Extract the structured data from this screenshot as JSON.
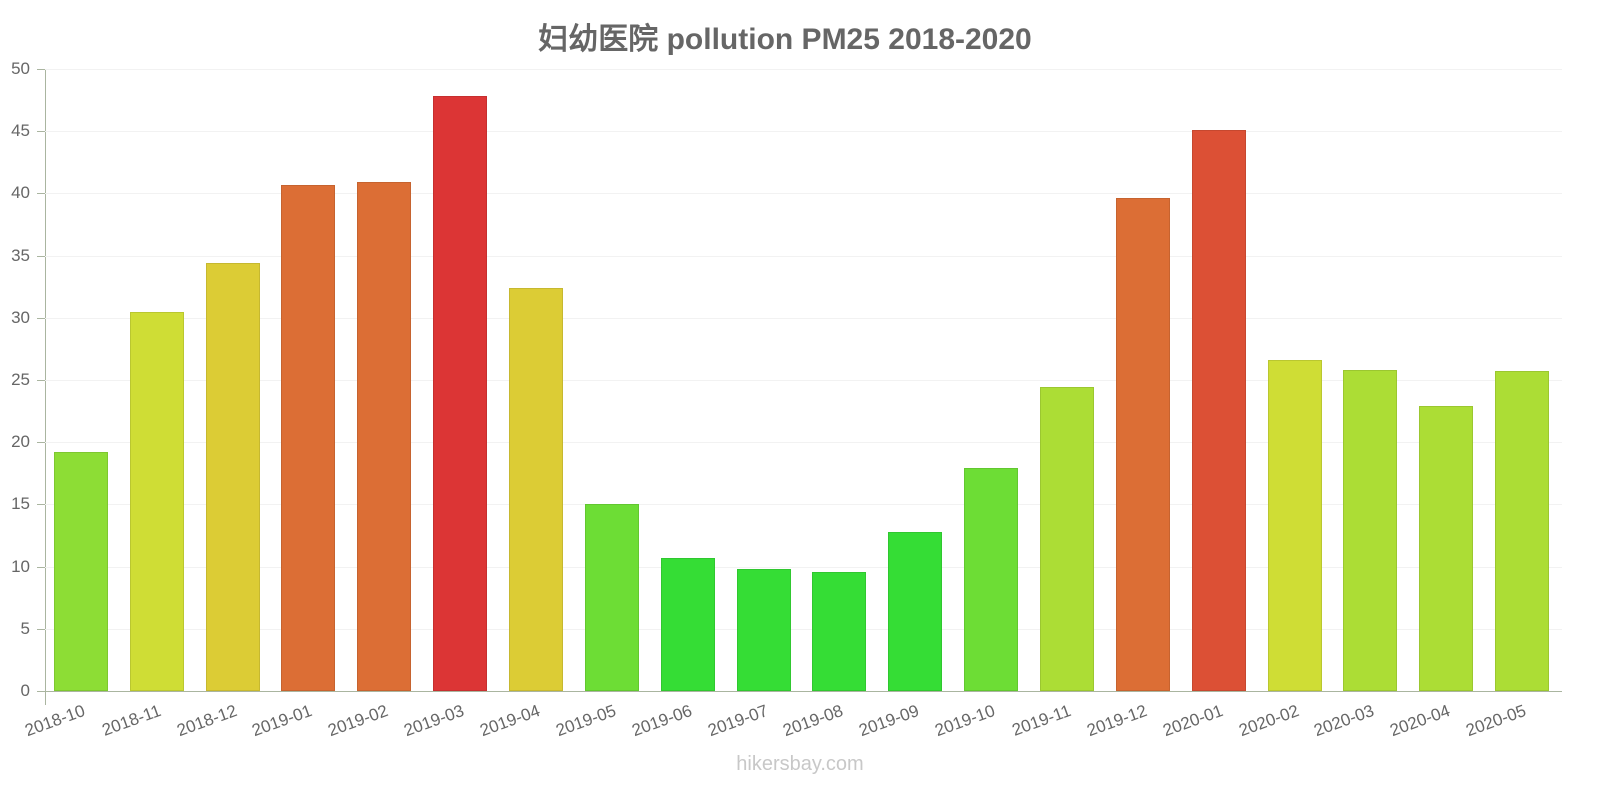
{
  "chart_data": {
    "type": "bar",
    "title": "妇幼医院 pollution PM25 2018-2020",
    "xlabel": "",
    "ylabel": "",
    "ylim": [
      0,
      50
    ],
    "yticks": [
      0,
      5,
      10,
      15,
      20,
      25,
      30,
      35,
      40,
      45,
      50
    ],
    "grid": true,
    "legend": null,
    "categories": [
      "2018-10",
      "2018-11",
      "2018-12",
      "2019-01",
      "2019-02",
      "2019-03",
      "2019-04",
      "2019-05",
      "2019-06",
      "2019-07",
      "2019-08",
      "2019-09",
      "2019-10",
      "2019-11",
      "2019-12",
      "2020-01",
      "2020-02",
      "2020-03",
      "2020-04",
      "2020-05"
    ],
    "values": [
      19.2,
      30.5,
      34.4,
      40.7,
      40.9,
      47.8,
      32.4,
      15.0,
      10.7,
      9.8,
      9.6,
      12.8,
      17.9,
      24.4,
      39.6,
      45.1,
      26.6,
      25.8,
      22.9,
      25.7
    ],
    "colors": [
      "#8ddd35",
      "#cfdd35",
      "#dccc35",
      "#dc6e35",
      "#dc6e35",
      "#dc3535",
      "#dccc35",
      "#6ddd35",
      "#35dd35",
      "#35dd35",
      "#35dd35",
      "#35dd35",
      "#6ddd35",
      "#acdd35",
      "#dc6e35",
      "#dc5035",
      "#cfdd35",
      "#acdd35",
      "#acdd35",
      "#acdd35"
    ],
    "border_colors": [
      "#7ec730",
      "#bac730",
      "#c6b830",
      "#c6632f",
      "#c6632f",
      "#c62f2f",
      "#c6b830",
      "#62c730",
      "#30c730",
      "#30c730",
      "#30c730",
      "#30c730",
      "#62c730",
      "#9bc730",
      "#c6632f",
      "#c6482f",
      "#bac730",
      "#9bc730",
      "#9bc730",
      "#9bc730"
    ]
  },
  "watermark": "hikersbay.com"
}
